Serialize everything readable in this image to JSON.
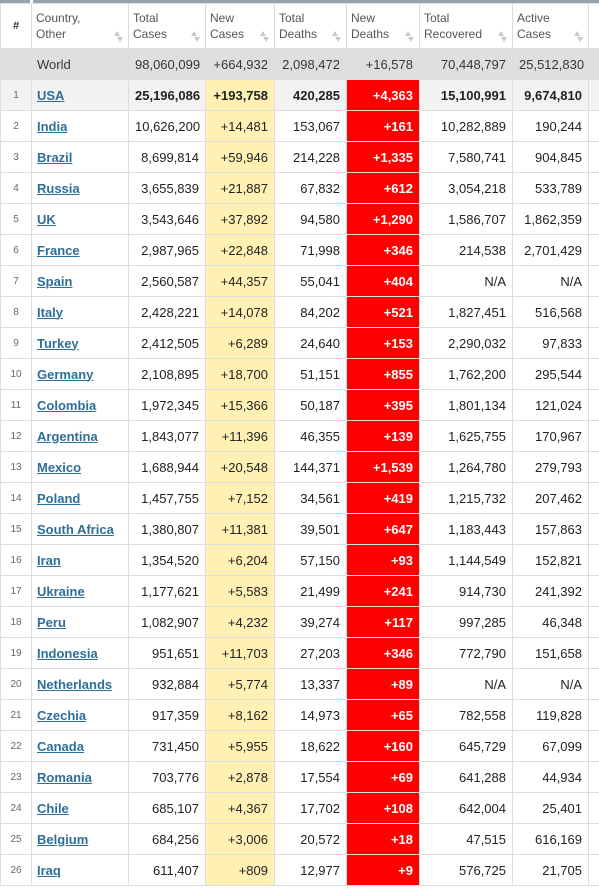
{
  "header": {
    "rank": "#",
    "country": "Country, Other",
    "total_cases": "Total Cases",
    "new_cases": "New Cases",
    "total_deaths": "Total Deaths",
    "new_deaths": "New Deaths",
    "total_recovered": "Total Recovered",
    "active_cases": "Active Cases"
  },
  "colors": {
    "new_cases_bg": "#fff0b4",
    "new_deaths_bg": "#ff0000",
    "world_row_bg": "#dfdfdf",
    "link": "#2d6e9b"
  },
  "world": {
    "country": "World",
    "total_cases": "98,060,099",
    "new_cases": "+664,932",
    "total_deaths": "2,098,472",
    "new_deaths": "+16,578",
    "total_recovered": "70,448,797",
    "active_cases": "25,512,830"
  },
  "rows": [
    {
      "rank": "1",
      "country": "USA",
      "total_cases": "25,196,086",
      "new_cases": "+193,758",
      "total_deaths": "420,285",
      "new_deaths": "+4,363",
      "total_recovered": "15,100,991",
      "active_cases": "9,674,810"
    },
    {
      "rank": "2",
      "country": "India",
      "total_cases": "10,626,200",
      "new_cases": "+14,481",
      "total_deaths": "153,067",
      "new_deaths": "+161",
      "total_recovered": "10,282,889",
      "active_cases": "190,244"
    },
    {
      "rank": "3",
      "country": "Brazil",
      "total_cases": "8,699,814",
      "new_cases": "+59,946",
      "total_deaths": "214,228",
      "new_deaths": "+1,335",
      "total_recovered": "7,580,741",
      "active_cases": "904,845"
    },
    {
      "rank": "4",
      "country": "Russia",
      "total_cases": "3,655,839",
      "new_cases": "+21,887",
      "total_deaths": "67,832",
      "new_deaths": "+612",
      "total_recovered": "3,054,218",
      "active_cases": "533,789"
    },
    {
      "rank": "5",
      "country": "UK",
      "total_cases": "3,543,646",
      "new_cases": "+37,892",
      "total_deaths": "94,580",
      "new_deaths": "+1,290",
      "total_recovered": "1,586,707",
      "active_cases": "1,862,359"
    },
    {
      "rank": "6",
      "country": "France",
      "total_cases": "2,987,965",
      "new_cases": "+22,848",
      "total_deaths": "71,998",
      "new_deaths": "+346",
      "total_recovered": "214,538",
      "active_cases": "2,701,429"
    },
    {
      "rank": "7",
      "country": "Spain",
      "total_cases": "2,560,587",
      "new_cases": "+44,357",
      "total_deaths": "55,041",
      "new_deaths": "+404",
      "total_recovered": "N/A",
      "active_cases": "N/A"
    },
    {
      "rank": "8",
      "country": "Italy",
      "total_cases": "2,428,221",
      "new_cases": "+14,078",
      "total_deaths": "84,202",
      "new_deaths": "+521",
      "total_recovered": "1,827,451",
      "active_cases": "516,568"
    },
    {
      "rank": "9",
      "country": "Turkey",
      "total_cases": "2,412,505",
      "new_cases": "+6,289",
      "total_deaths": "24,640",
      "new_deaths": "+153",
      "total_recovered": "2,290,032",
      "active_cases": "97,833"
    },
    {
      "rank": "10",
      "country": "Germany",
      "total_cases": "2,108,895",
      "new_cases": "+18,700",
      "total_deaths": "51,151",
      "new_deaths": "+855",
      "total_recovered": "1,762,200",
      "active_cases": "295,544"
    },
    {
      "rank": "11",
      "country": "Colombia",
      "total_cases": "1,972,345",
      "new_cases": "+15,366",
      "total_deaths": "50,187",
      "new_deaths": "+395",
      "total_recovered": "1,801,134",
      "active_cases": "121,024"
    },
    {
      "rank": "12",
      "country": "Argentina",
      "total_cases": "1,843,077",
      "new_cases": "+11,396",
      "total_deaths": "46,355",
      "new_deaths": "+139",
      "total_recovered": "1,625,755",
      "active_cases": "170,967"
    },
    {
      "rank": "13",
      "country": "Mexico",
      "total_cases": "1,688,944",
      "new_cases": "+20,548",
      "total_deaths": "144,371",
      "new_deaths": "+1,539",
      "total_recovered": "1,264,780",
      "active_cases": "279,793"
    },
    {
      "rank": "14",
      "country": "Poland",
      "total_cases": "1,457,755",
      "new_cases": "+7,152",
      "total_deaths": "34,561",
      "new_deaths": "+419",
      "total_recovered": "1,215,732",
      "active_cases": "207,462"
    },
    {
      "rank": "15",
      "country": "South Africa",
      "total_cases": "1,380,807",
      "new_cases": "+11,381",
      "total_deaths": "39,501",
      "new_deaths": "+647",
      "total_recovered": "1,183,443",
      "active_cases": "157,863"
    },
    {
      "rank": "16",
      "country": "Iran",
      "total_cases": "1,354,520",
      "new_cases": "+6,204",
      "total_deaths": "57,150",
      "new_deaths": "+93",
      "total_recovered": "1,144,549",
      "active_cases": "152,821"
    },
    {
      "rank": "17",
      "country": "Ukraine",
      "total_cases": "1,177,621",
      "new_cases": "+5,583",
      "total_deaths": "21,499",
      "new_deaths": "+241",
      "total_recovered": "914,730",
      "active_cases": "241,392"
    },
    {
      "rank": "18",
      "country": "Peru",
      "total_cases": "1,082,907",
      "new_cases": "+4,232",
      "total_deaths": "39,274",
      "new_deaths": "+117",
      "total_recovered": "997,285",
      "active_cases": "46,348"
    },
    {
      "rank": "19",
      "country": "Indonesia",
      "total_cases": "951,651",
      "new_cases": "+11,703",
      "total_deaths": "27,203",
      "new_deaths": "+346",
      "total_recovered": "772,790",
      "active_cases": "151,658"
    },
    {
      "rank": "20",
      "country": "Netherlands",
      "total_cases": "932,884",
      "new_cases": "+5,774",
      "total_deaths": "13,337",
      "new_deaths": "+89",
      "total_recovered": "N/A",
      "active_cases": "N/A"
    },
    {
      "rank": "21",
      "country": "Czechia",
      "total_cases": "917,359",
      "new_cases": "+8,162",
      "total_deaths": "14,973",
      "new_deaths": "+65",
      "total_recovered": "782,558",
      "active_cases": "119,828"
    },
    {
      "rank": "22",
      "country": "Canada",
      "total_cases": "731,450",
      "new_cases": "+5,955",
      "total_deaths": "18,622",
      "new_deaths": "+160",
      "total_recovered": "645,729",
      "active_cases": "67,099"
    },
    {
      "rank": "23",
      "country": "Romania",
      "total_cases": "703,776",
      "new_cases": "+2,878",
      "total_deaths": "17,554",
      "new_deaths": "+69",
      "total_recovered": "641,288",
      "active_cases": "44,934"
    },
    {
      "rank": "24",
      "country": "Chile",
      "total_cases": "685,107",
      "new_cases": "+4,367",
      "total_deaths": "17,702",
      "new_deaths": "+108",
      "total_recovered": "642,004",
      "active_cases": "25,401"
    },
    {
      "rank": "25",
      "country": "Belgium",
      "total_cases": "684,256",
      "new_cases": "+3,006",
      "total_deaths": "20,572",
      "new_deaths": "+18",
      "total_recovered": "47,515",
      "active_cases": "616,169"
    },
    {
      "rank": "26",
      "country": "Iraq",
      "total_cases": "611,407",
      "new_cases": "+809",
      "total_deaths": "12,977",
      "new_deaths": "+9",
      "total_recovered": "576,725",
      "active_cases": "21,705"
    }
  ]
}
